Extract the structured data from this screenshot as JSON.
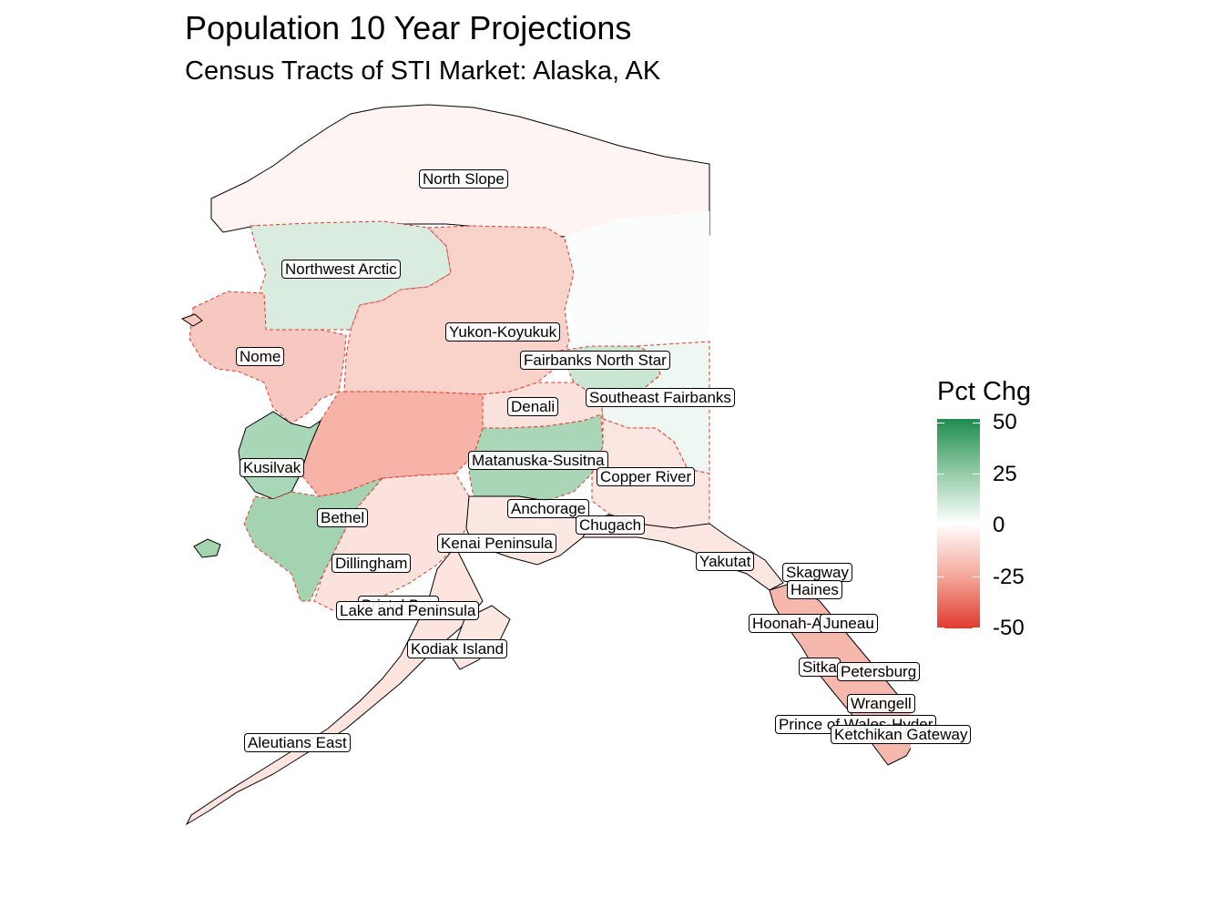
{
  "title": "Population 10 Year Projections",
  "subtitle": "Census Tracts of STI Market: Alaska, AK",
  "legend": {
    "title": "Pct Chg",
    "ticks": [
      "50",
      "25",
      "0",
      "-25",
      "-50"
    ],
    "high_color": "#1e8c4e",
    "mid_color": "#ffffff",
    "low_color": "#e03a2c",
    "range": [
      -50,
      50
    ]
  },
  "colors": {
    "boundary_dash": "#e03a2c",
    "coast_outline": "#000000"
  },
  "regions": [
    {
      "name": "North Slope",
      "pct_chg": -3
    },
    {
      "name": "Northwest Arctic",
      "pct_chg": 14
    },
    {
      "name": "Yukon-Koyukuk",
      "pct_chg": -17
    },
    {
      "name": "Nome",
      "pct_chg": -15
    },
    {
      "name": "Fairbanks North Star",
      "pct_chg": 10
    },
    {
      "name": "Southeast Fairbanks",
      "pct_chg": 4
    },
    {
      "name": "Denali",
      "pct_chg": -5
    },
    {
      "name": "Kusilvak",
      "pct_chg": 25
    },
    {
      "name": "Bethel",
      "pct_chg": 23
    },
    {
      "name": "Matanuska-Susitna",
      "pct_chg": 22
    },
    {
      "name": "Copper River",
      "pct_chg": -6
    },
    {
      "name": "Anchorage",
      "pct_chg": 3
    },
    {
      "name": "Chugach",
      "pct_chg": -9
    },
    {
      "name": "Kenai Peninsula",
      "pct_chg": -7
    },
    {
      "name": "Dillingham",
      "pct_chg": -11
    },
    {
      "name": "Bristol Bay",
      "pct_chg": -10
    },
    {
      "name": "Lake and Peninsula",
      "pct_chg": -12
    },
    {
      "name": "Kodiak Island",
      "pct_chg": -10
    },
    {
      "name": "Aleutians East",
      "pct_chg": -8
    },
    {
      "name": "Yakutat",
      "pct_chg": -12
    },
    {
      "name": "Skagway",
      "pct_chg": -10
    },
    {
      "name": "Haines",
      "pct_chg": -20
    },
    {
      "name": "Hoonah-Angoon",
      "pct_chg": -18
    },
    {
      "name": "Juneau",
      "pct_chg": -14
    },
    {
      "name": "Sitka",
      "pct_chg": -16
    },
    {
      "name": "Petersburg",
      "pct_chg": -22
    },
    {
      "name": "Wrangell",
      "pct_chg": -20
    },
    {
      "name": "Prince of Wales-Hyder",
      "pct_chg": -18
    },
    {
      "name": "Ketchikan Gateway",
      "pct_chg": -15
    }
  ]
}
